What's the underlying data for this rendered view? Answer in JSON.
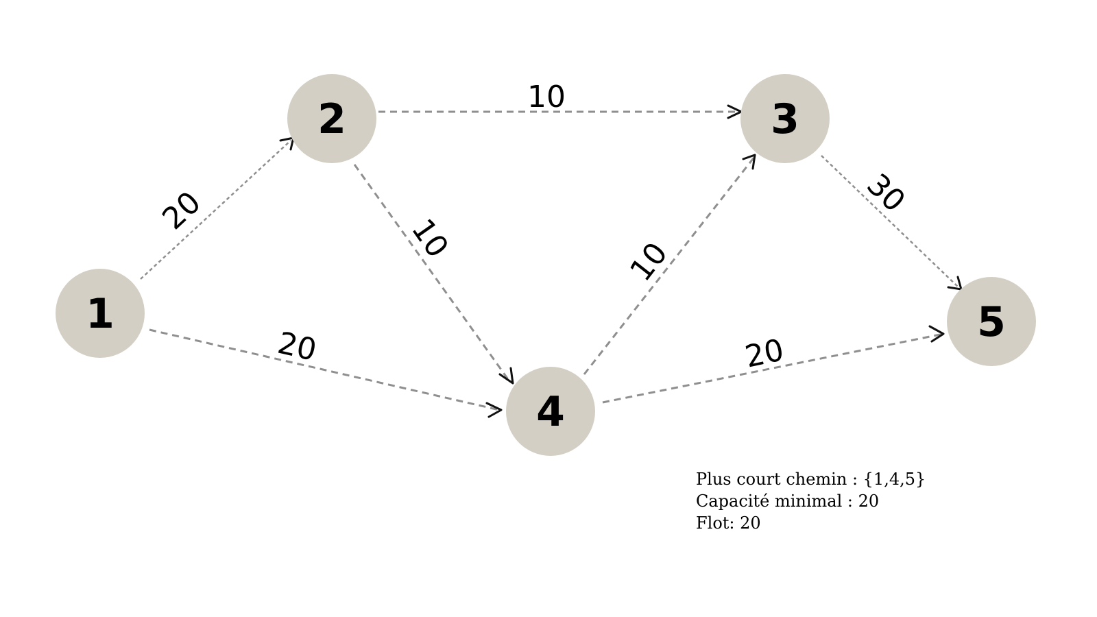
{
  "nodes": [
    {
      "id": "1",
      "label": "1"
    },
    {
      "id": "2",
      "label": "2"
    },
    {
      "id": "3",
      "label": "3"
    },
    {
      "id": "4",
      "label": "4"
    },
    {
      "id": "5",
      "label": "5"
    }
  ],
  "edges": [
    {
      "from": "1",
      "to": "2",
      "capacity": "20"
    },
    {
      "from": "1",
      "to": "4",
      "capacity": "20"
    },
    {
      "from": "2",
      "to": "3",
      "capacity": "10"
    },
    {
      "from": "2",
      "to": "4",
      "capacity": "10"
    },
    {
      "from": "4",
      "to": "3",
      "capacity": "10"
    },
    {
      "from": "3",
      "to": "5",
      "capacity": "30"
    },
    {
      "from": "4",
      "to": "5",
      "capacity": "20"
    }
  ],
  "summary": {
    "shortest_path": "Plus court chemin : {1,4,5}",
    "min_capacity": "Capacité minimal : 20",
    "flow": "Flot: 20"
  },
  "colors": {
    "node_fill": "#d4cfc4",
    "edge_stroke": "#8f8f8f",
    "text": "#000000"
  }
}
